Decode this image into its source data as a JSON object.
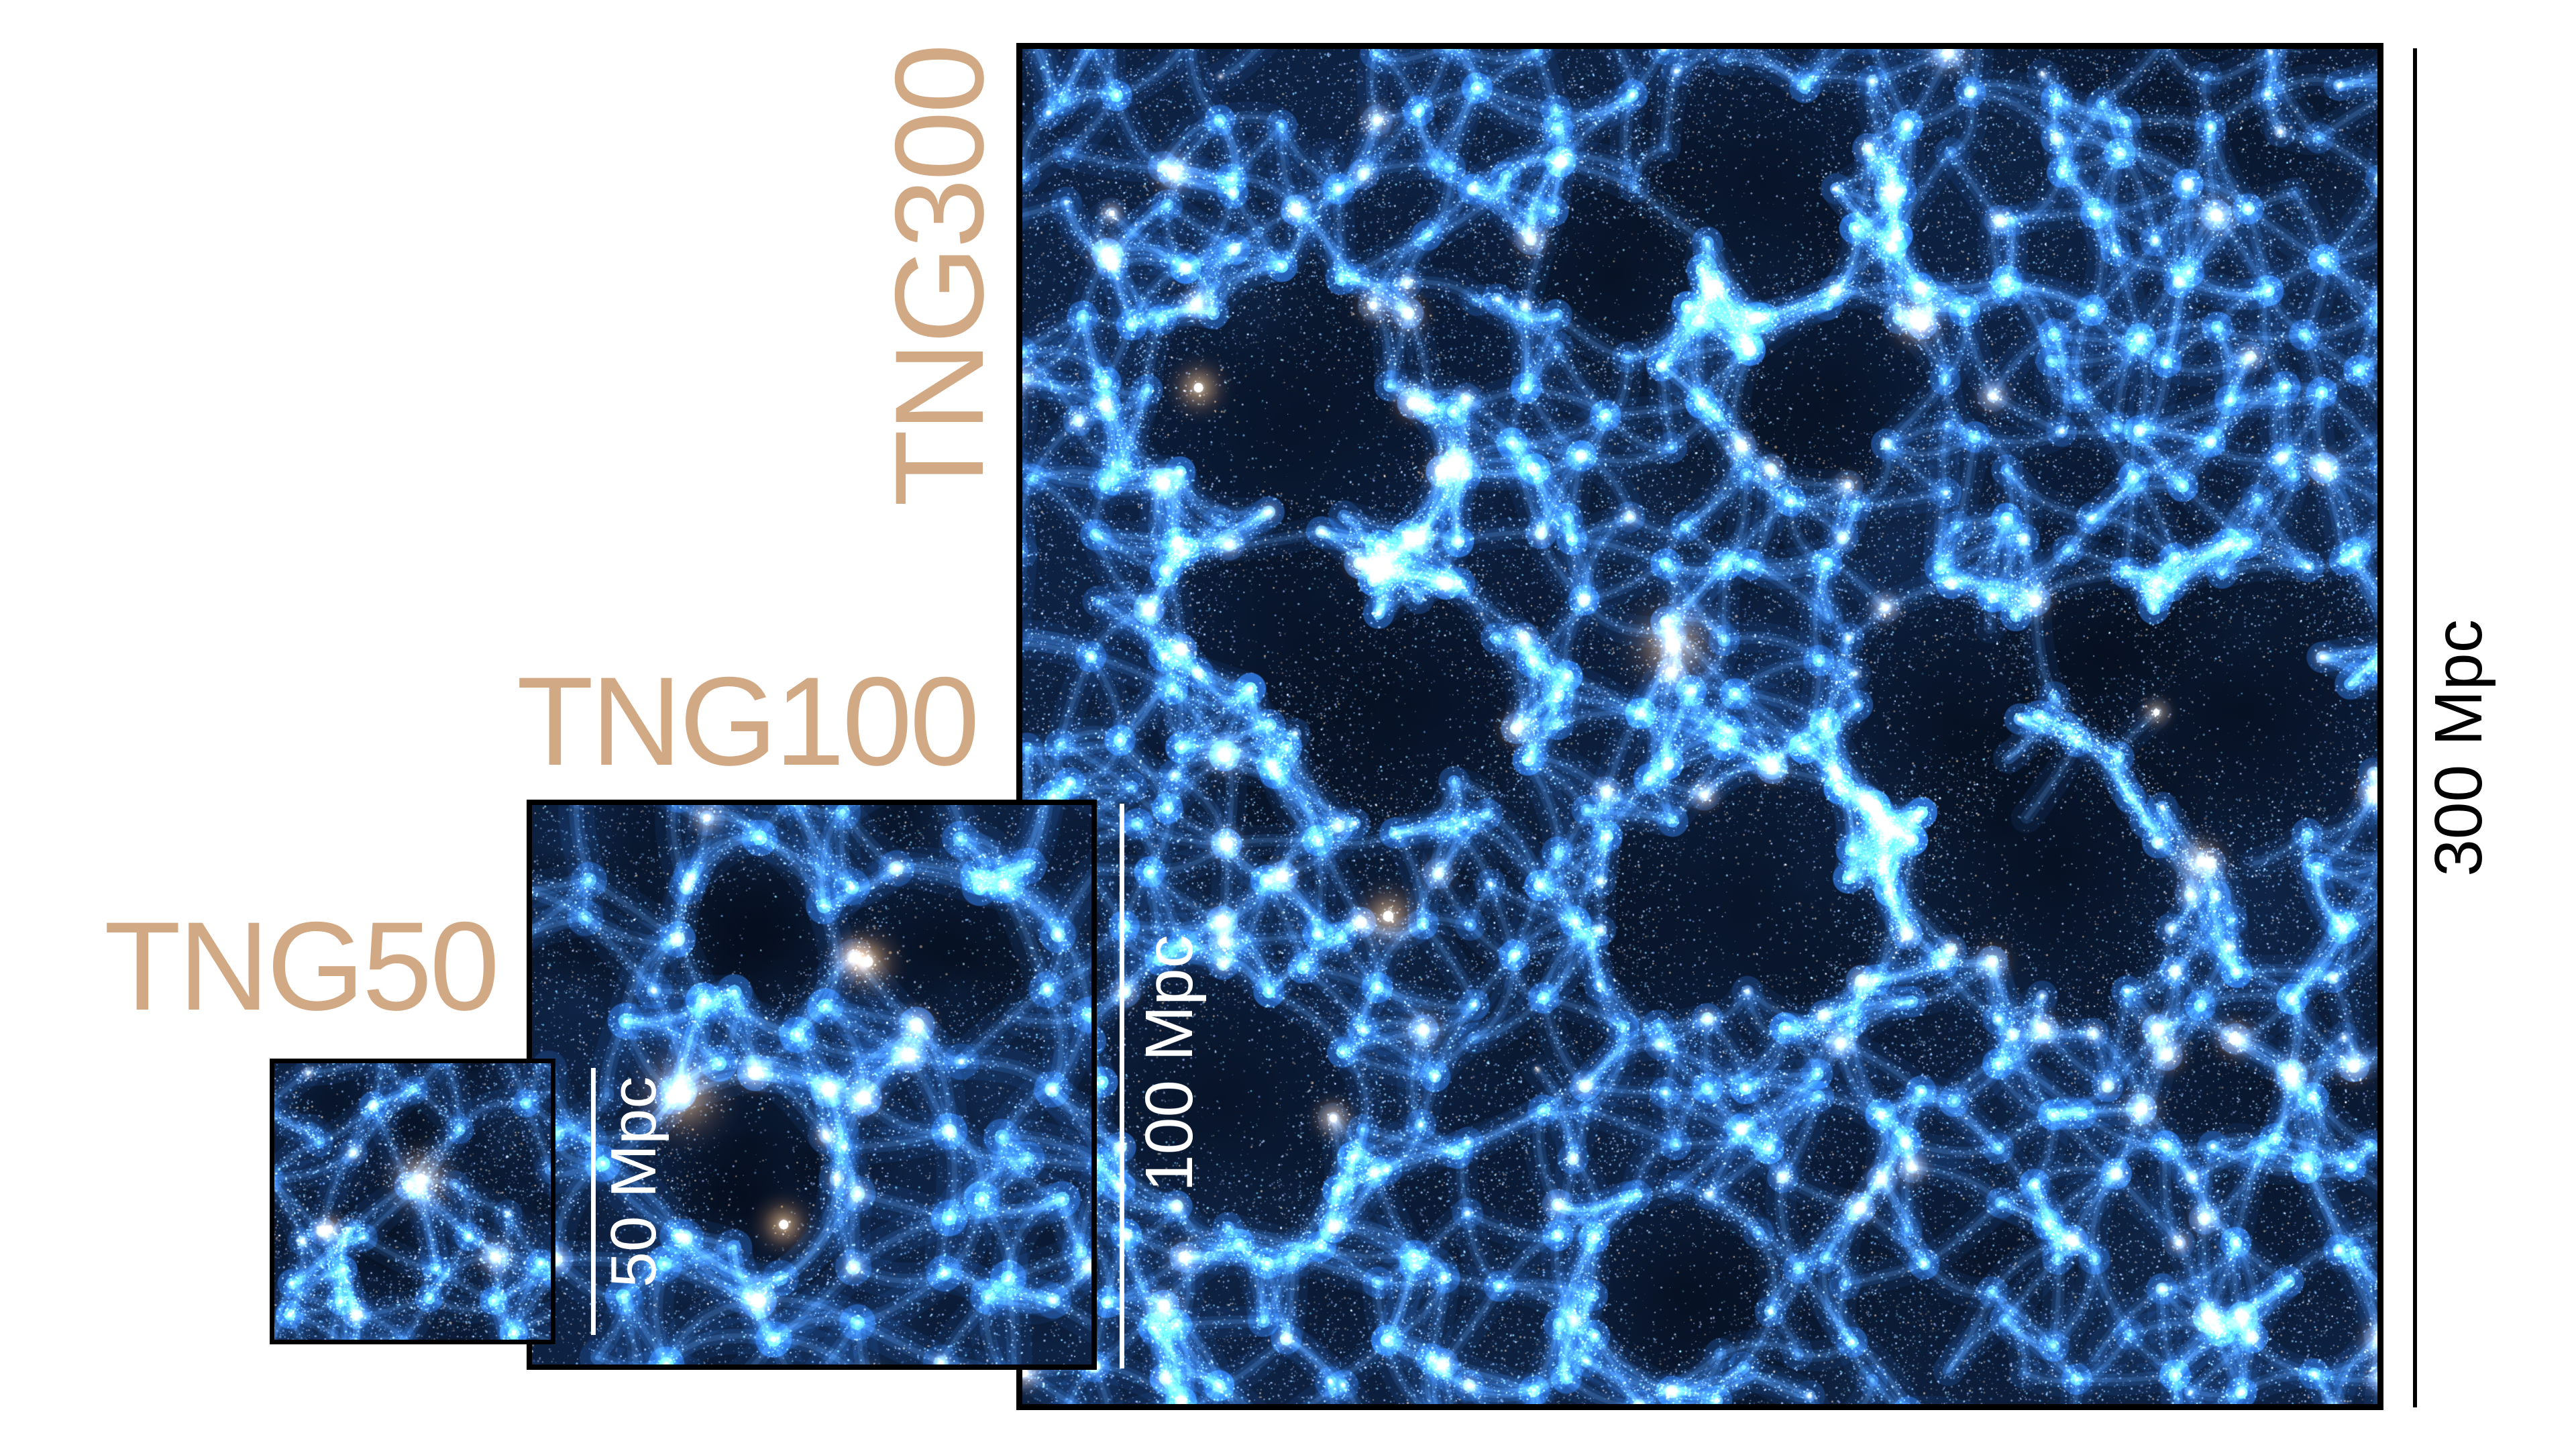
{
  "figure": {
    "panels": [
      {
        "id": "tng300",
        "label": "TNG300",
        "scale_label": "300 Mpc",
        "box_size_mpc": 300
      },
      {
        "id": "tng100",
        "label": "TNG100",
        "scale_label": "100 Mpc",
        "box_size_mpc": 100
      },
      {
        "id": "tng50",
        "label": "TNG50",
        "scale_label": "50 Mpc",
        "box_size_mpc": 50
      }
    ],
    "colors": {
      "page_background": "#ffffff",
      "panel_label": "#d2a985",
      "panel_border": "#000000",
      "scale_bar_outer": "#000000",
      "scale_text_outer": "#000000",
      "scale_bar_inner": "#ffffff",
      "scale_text_inner": "#ffffff",
      "sim_field": "#0d2142",
      "sim_void": "#050e20",
      "sim_filament": "#3e74ad",
      "sim_speckle": "#a8c8e8",
      "sim_halo": "#e8a964",
      "sim_halo_core": "#fff6e6"
    }
  }
}
